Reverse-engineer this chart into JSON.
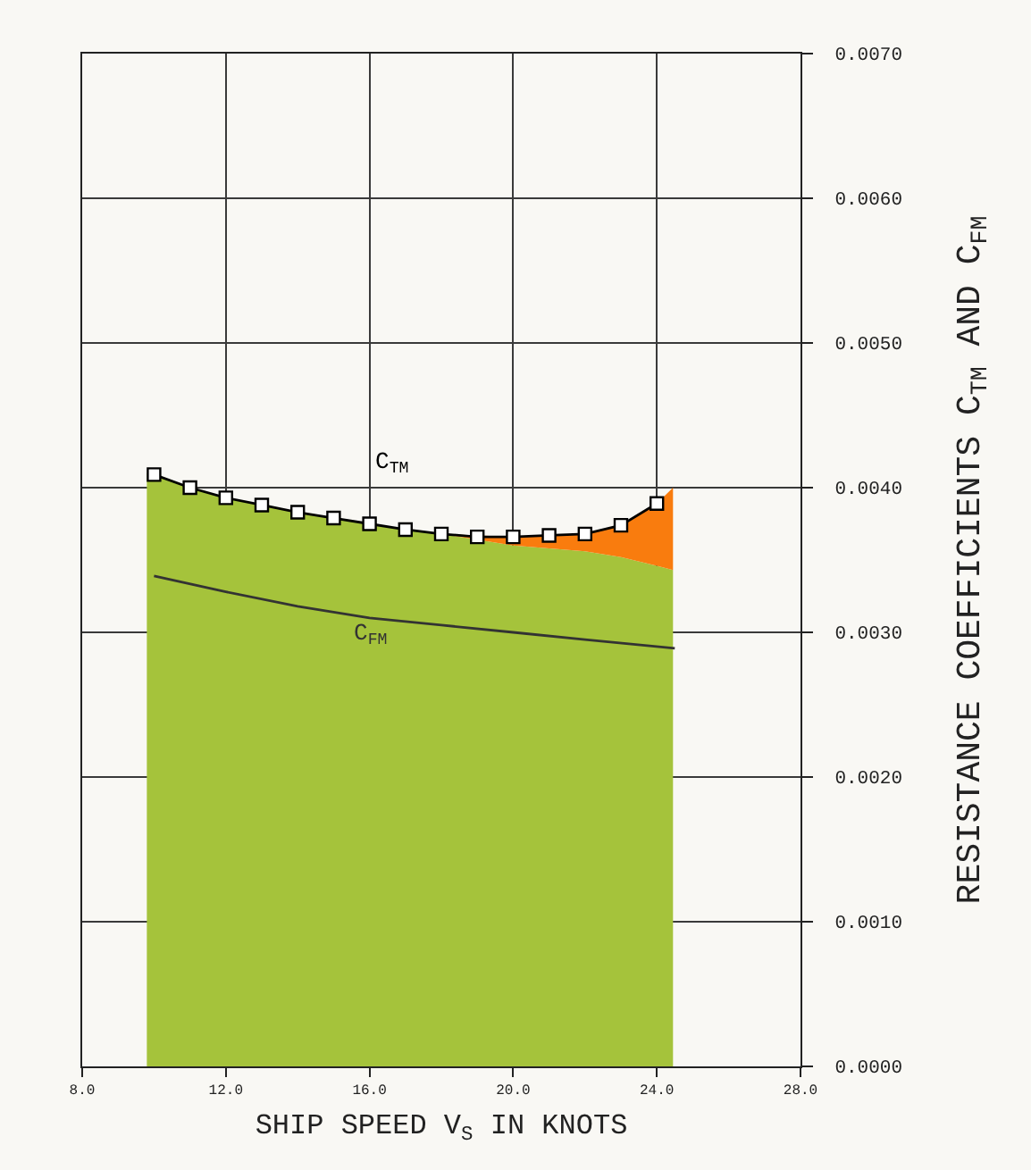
{
  "chart_data": {
    "type": "line",
    "xlabel": "SHIP SPEED V$_{S}$ IN KNOTS",
    "ylabel": "RESISTANCE COEFFICIENTS C$_{TM}$ AND C$_{FM}$",
    "x": [
      9.8,
      10,
      11,
      12,
      13,
      14,
      15,
      16,
      17,
      18,
      20,
      21,
      22,
      23,
      24,
      24.45
    ],
    "series": [
      {
        "type": "area",
        "color": "#a5c33b",
        "values": [
          0.0041,
          0.00409,
          0.004,
          0.00393,
          0.00388,
          0.00383,
          0.00379,
          0.00375,
          0.00371,
          0.00368,
          0.0036,
          0.00358,
          0.00356,
          0.00352,
          0.00346,
          0.00343
        ]
      },
      {
        "type": "area",
        "color": "#f97c0e",
        "values": [
          null,
          null,
          null,
          null,
          null,
          null,
          null,
          null,
          null,
          0,
          6e-05,
          9e-05,
          0.00012,
          0.00022,
          0.00043,
          0.00057
        ]
      },
      {
        "name": "C$_{TM}$",
        "color": "#000000",
        "marker": "square",
        "x": [
          10,
          11,
          12,
          13,
          14,
          15,
          16,
          17,
          18,
          19,
          20,
          21,
          22,
          23,
          24
        ],
        "values": [
          0.00409,
          0.004,
          0.00393,
          0.00388,
          0.00383,
          0.00379,
          0.00375,
          0.00371,
          0.00368,
          0.00366,
          0.00366,
          0.00367,
          0.00368,
          0.00374,
          0.00389
        ]
      },
      {
        "name": "C$_{FM}$",
        "color": "#333333",
        "x": [
          10,
          12,
          14,
          16,
          18,
          20,
          22,
          24.5
        ],
        "values": [
          0.00339,
          0.00328,
          0.00318,
          0.0031,
          0.00305,
          0.003,
          0.00295,
          0.00289
        ]
      }
    ],
    "stacked": true,
    "line_style": "solid",
    "grid": true,
    "legend": false,
    "xlim": [
      8,
      28
    ],
    "xticks": [
      {
        "value": 8,
        "label": "8.0"
      },
      {
        "value": 12,
        "label": "12.0"
      },
      {
        "value": 16,
        "label": "16.0"
      },
      {
        "value": 20,
        "label": "20.0"
      },
      {
        "value": 24,
        "label": "24.0"
      },
      {
        "value": 28,
        "label": "28.0"
      }
    ],
    "ylim": [
      0,
      0.007
    ],
    "yticks": [
      {
        "value": 0,
        "label": "0.0000"
      },
      {
        "value": 0.001,
        "label": "0.0010"
      },
      {
        "value": 0.002,
        "label": "0.0020"
      },
      {
        "value": 0.003,
        "label": "0.0030"
      },
      {
        "value": 0.004,
        "label": "0.0040"
      },
      {
        "value": 0.005,
        "label": "0.0050"
      },
      {
        "value": 0.006,
        "label": "0.0060"
      },
      {
        "value": 0.007,
        "label": "0.0070"
      }
    ]
  }
}
